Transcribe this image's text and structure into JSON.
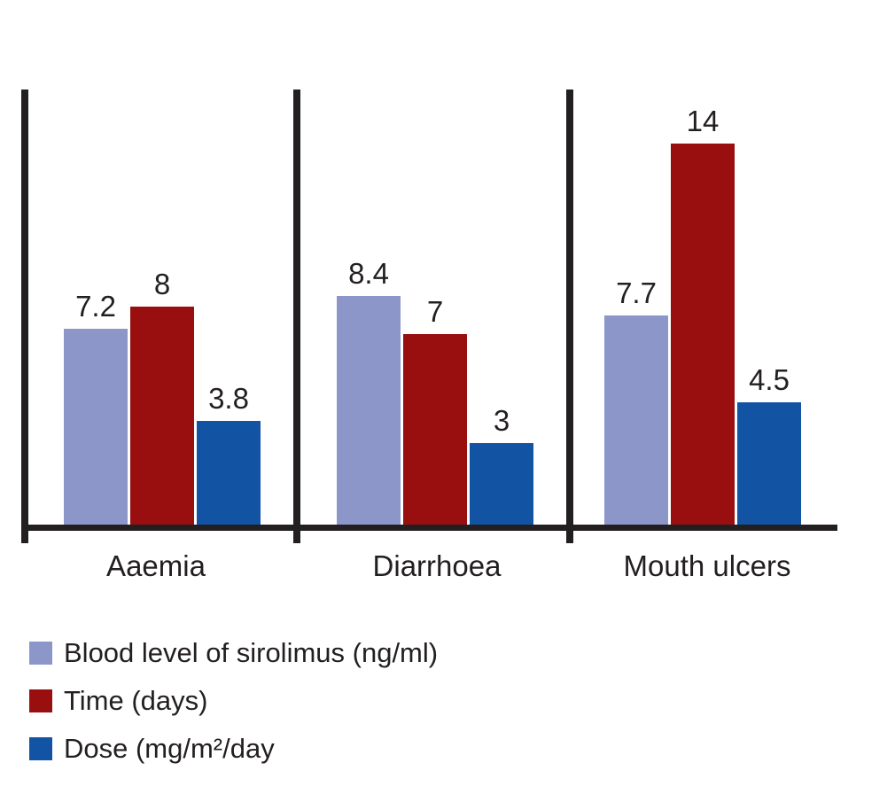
{
  "chart_data": {
    "type": "bar",
    "categories": [
      "Aaemia",
      "Diarrhoea",
      "Mouth ulcers"
    ],
    "series": [
      {
        "name": "Blood level of sirolimus (ng/ml)",
        "color": "#8C96C9",
        "values": [
          7.2,
          8.4,
          7.7
        ],
        "labels": [
          "7.2",
          "8.4",
          "7.7"
        ]
      },
      {
        "name": "Time (days)",
        "color": "#990F10",
        "values": [
          8,
          7,
          14
        ],
        "labels": [
          "8",
          "7",
          "14"
        ]
      },
      {
        "name": "Dose (mg/m²/day",
        "color": "#1253A4",
        "values": [
          3.8,
          3,
          4.5
        ],
        "labels": [
          "3.8",
          "3",
          "4.5"
        ]
      }
    ],
    "title": "",
    "xlabel": "",
    "ylabel": "",
    "ylim": [
      0,
      16
    ],
    "grid": false,
    "bar_value_labels": true,
    "legend_position": "bottom-left",
    "axis_color": "#231F20",
    "text_color": "#231F20",
    "background_color": "#FFFFFF"
  }
}
